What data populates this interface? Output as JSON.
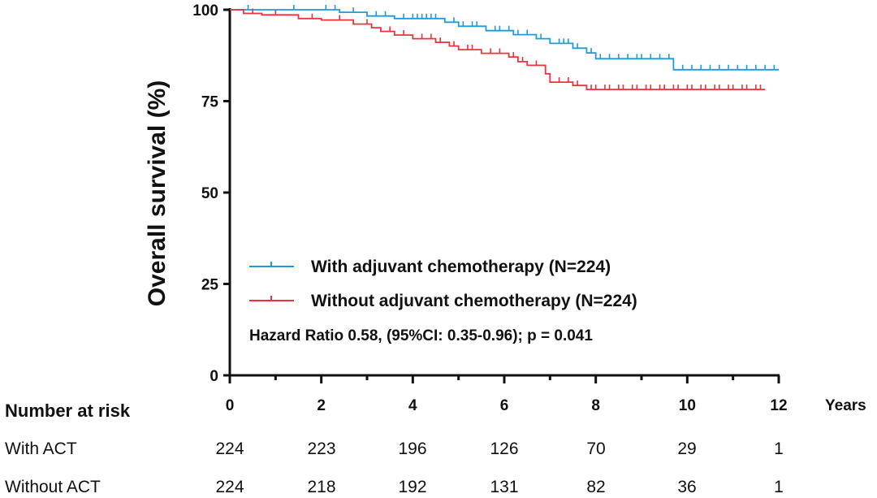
{
  "chart_data": {
    "type": "line",
    "title": "",
    "xlabel": "Years",
    "ylabel": "Overall survival (%)",
    "xlim": [
      0,
      12
    ],
    "ylim": [
      0,
      100
    ],
    "x_ticks": [
      "0",
      "2",
      "4",
      "6",
      "8",
      "10",
      "12"
    ],
    "y_ticks": [
      "0",
      "25",
      "50",
      "75",
      "100"
    ],
    "legend_placement": "bottom-left",
    "annotation": "Hazard Ratio 0.58, (95%CI: 0.35-0.96); p = 0.041",
    "series": [
      {
        "name": "With adjuvant chemotherapy (N=224)",
        "color": "#1f9bd8",
        "points": [
          [
            0,
            100
          ],
          [
            2.4,
            100
          ],
          [
            2.4,
            99.3
          ],
          [
            3,
            99.3
          ],
          [
            3,
            98.3
          ],
          [
            3.6,
            98.3
          ],
          [
            3.6,
            97.6
          ],
          [
            4.7,
            97.6
          ],
          [
            4.7,
            96.6
          ],
          [
            5,
            96.6
          ],
          [
            5,
            95.5
          ],
          [
            5.6,
            95.5
          ],
          [
            5.6,
            94.3
          ],
          [
            6.2,
            94.3
          ],
          [
            6.2,
            93.2
          ],
          [
            6.7,
            93.2
          ],
          [
            6.7,
            92.1
          ],
          [
            7,
            92.1
          ],
          [
            7,
            90.8
          ],
          [
            7.5,
            90.8
          ],
          [
            7.5,
            89.5
          ],
          [
            7.8,
            89.5
          ],
          [
            7.8,
            88.2
          ],
          [
            8,
            88.2
          ],
          [
            8,
            86.6
          ],
          [
            9.7,
            86.6
          ],
          [
            9.7,
            83.6
          ],
          [
            12,
            83.6
          ]
        ],
        "censor_x": [
          0.4,
          1.4,
          2.1,
          2.3,
          2.7,
          3.2,
          3.4,
          3.8,
          4.0,
          4.1,
          4.2,
          4.3,
          4.4,
          4.5,
          4.9,
          5.1,
          5.3,
          5.4,
          5.8,
          5.9,
          6.1,
          6.3,
          6.5,
          6.8,
          7.2,
          7.3,
          7.4,
          7.6,
          7.9,
          8.1,
          8.3,
          8.5,
          8.7,
          8.9,
          9.0,
          9.2,
          9.4,
          9.6,
          9.9,
          10.1,
          10.3,
          10.5,
          10.7,
          10.9,
          11.1,
          11.3,
          11.5,
          11.7,
          11.9
        ]
      },
      {
        "name": "Without adjuvant chemotherapy (N=224)",
        "color": "#e8343a",
        "points": [
          [
            0,
            100
          ],
          [
            0.3,
            100
          ],
          [
            0.3,
            99
          ],
          [
            0.7,
            99
          ],
          [
            0.7,
            98.6
          ],
          [
            1.5,
            98.6
          ],
          [
            1.5,
            97.6
          ],
          [
            2.0,
            97.6
          ],
          [
            2.0,
            97.2
          ],
          [
            2.7,
            97.2
          ],
          [
            2.7,
            96.1
          ],
          [
            3.1,
            96.1
          ],
          [
            3.1,
            95.1
          ],
          [
            3.3,
            95.1
          ],
          [
            3.3,
            94.1
          ],
          [
            3.6,
            94.1
          ],
          [
            3.6,
            93.1
          ],
          [
            4.0,
            93.1
          ],
          [
            4.0,
            92.1
          ],
          [
            4.5,
            92.1
          ],
          [
            4.5,
            91.1
          ],
          [
            4.8,
            91.1
          ],
          [
            4.8,
            90.1
          ],
          [
            5.0,
            90.1
          ],
          [
            5.0,
            89.1
          ],
          [
            5.5,
            89.1
          ],
          [
            5.5,
            88.1
          ],
          [
            6.1,
            88.1
          ],
          [
            6.1,
            87.1
          ],
          [
            6.3,
            87.1
          ],
          [
            6.3,
            85.8
          ],
          [
            6.5,
            85.8
          ],
          [
            6.5,
            84.8
          ],
          [
            6.9,
            84.8
          ],
          [
            6.9,
            82.5
          ],
          [
            7.0,
            82.5
          ],
          [
            7.0,
            80.2
          ],
          [
            7.5,
            80.2
          ],
          [
            7.5,
            79.3
          ],
          [
            7.8,
            79.3
          ],
          [
            7.8,
            78.2
          ],
          [
            11.7,
            78.2
          ]
        ],
        "censor_x": [
          0.5,
          1.0,
          1.8,
          2.4,
          3.0,
          3.5,
          3.8,
          4.2,
          4.4,
          4.6,
          4.9,
          5.2,
          5.3,
          5.7,
          5.9,
          6.2,
          6.4,
          6.7,
          7.2,
          7.4,
          7.6,
          7.9,
          8.0,
          8.2,
          8.3,
          8.5,
          8.6,
          8.8,
          8.9,
          9.1,
          9.2,
          9.4,
          9.5,
          9.7,
          9.8,
          10.0,
          10.1,
          10.3,
          10.4,
          10.6,
          10.7,
          10.9,
          11.0,
          11.2,
          11.3,
          11.5,
          11.6
        ]
      }
    ]
  },
  "risk_table": {
    "title": "Number at risk",
    "rows": [
      {
        "label": "With ACT",
        "values": [
          "224",
          "223",
          "196",
          "126",
          "70",
          "29",
          "1"
        ]
      },
      {
        "label": "Without ACT",
        "values": [
          "224",
          "218",
          "192",
          "131",
          "82",
          "36",
          "1"
        ]
      }
    ]
  }
}
